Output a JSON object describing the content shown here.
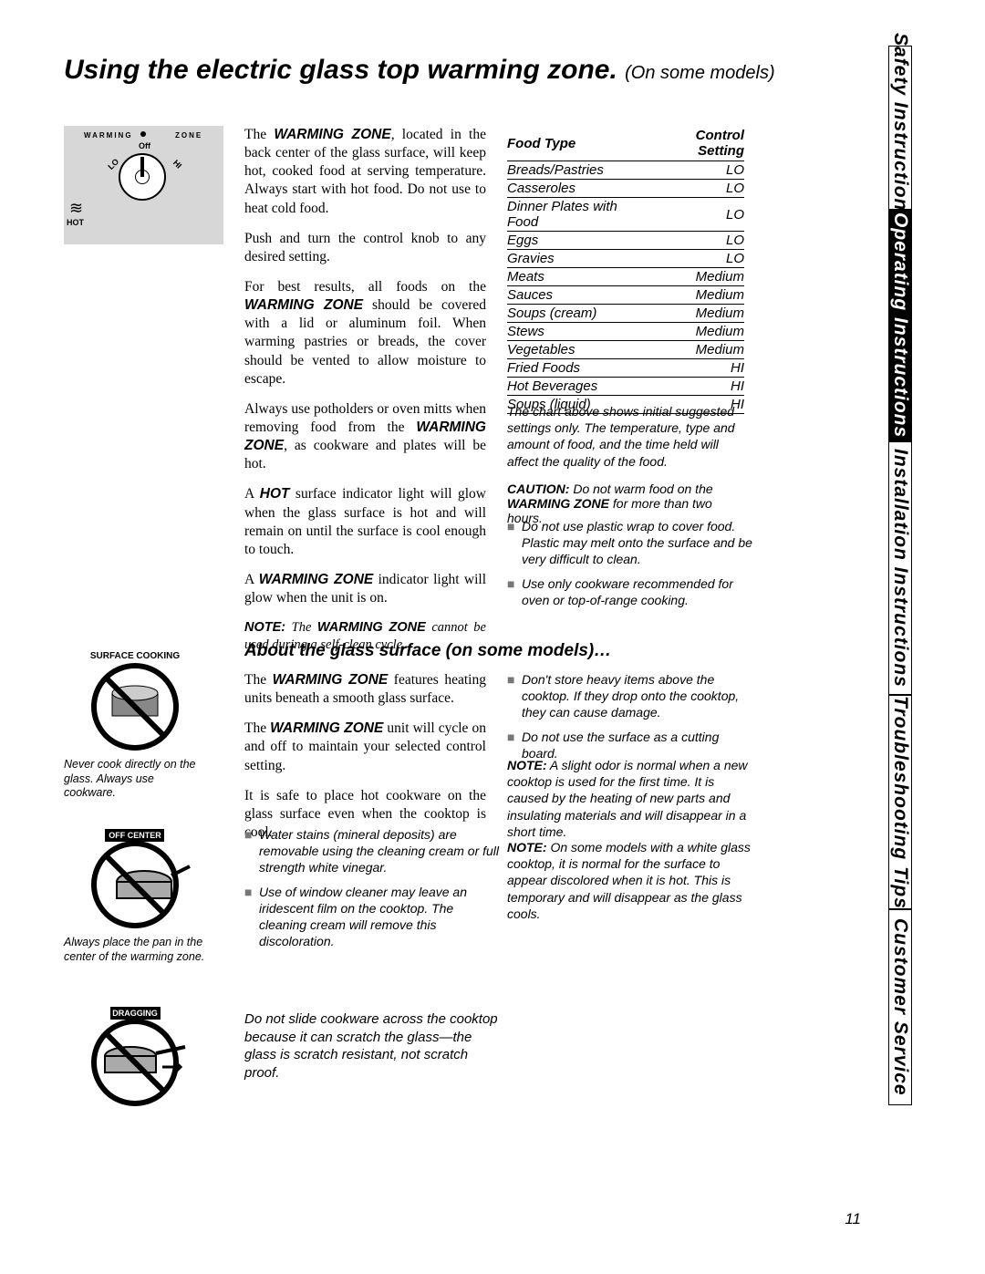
{
  "title": {
    "main": "Using the electric glass top warming zone.",
    "sub": "(On some models)"
  },
  "tabs": [
    {
      "label": "Safety Instructions",
      "active": false
    },
    {
      "label": "Operating Instructions",
      "active": true
    },
    {
      "label": "Installation Instructions",
      "active": false
    },
    {
      "label": "Troubleshooting Tips",
      "active": false
    },
    {
      "label": "Customer Service",
      "active": false
    }
  ],
  "knob": {
    "left_label": "WARMING",
    "right_label": "ZONE",
    "off": "Off",
    "lo": "LO",
    "hi": "HI",
    "hot": "HOT"
  },
  "paragraphs": {
    "p1_pre": "The ",
    "p1_bold": "WARMING ZONE",
    "p1_post": ", located in the back center of the glass surface, will keep hot, cooked food at serving temperature. Always start with hot food. Do not use to heat cold food.",
    "p2": "Push and turn the control knob to any desired setting.",
    "p3_pre": "For best results, all foods on the ",
    "p3_bold": "WARMING ZONE",
    "p3_post": " should be covered with a lid or aluminum foil. When warming pastries or breads, the cover should be vented to allow moisture to escape.",
    "p4_pre": "Always use potholders or oven mitts when removing food from the ",
    "p4_bold": "WARMING ZONE",
    "p4_post": ", as cookware and plates will be hot.",
    "p5_pre": "A ",
    "p5_bold": "HOT",
    "p5_post": " surface indicator light will glow when the glass surface is hot and will remain on until the surface is cool enough to touch.",
    "p6_pre": "A ",
    "p6_bold": "WARMING ZONE",
    "p6_post": " indicator light will glow when the unit is on.",
    "note1_pre": "NOTE:",
    "note1_mid": " The ",
    "note1_bold": "WARMING ZONE",
    "note1_post": " cannot be used during a self-clean cycle."
  },
  "food_table": {
    "header_food": "Food Type",
    "header_setting": "Control Setting",
    "rows": [
      {
        "food": "Breads/Pastries",
        "setting": "LO"
      },
      {
        "food": "Casseroles",
        "setting": "LO"
      },
      {
        "food": "Dinner Plates with Food",
        "setting": "LO"
      },
      {
        "food": "Eggs",
        "setting": "LO"
      },
      {
        "food": "Gravies",
        "setting": "LO"
      },
      {
        "food": "Meats",
        "setting": "Medium"
      },
      {
        "food": "Sauces",
        "setting": "Medium"
      },
      {
        "food": "Soups (cream)",
        "setting": "Medium"
      },
      {
        "food": "Stews",
        "setting": "Medium"
      },
      {
        "food": "Vegetables",
        "setting": "Medium"
      },
      {
        "food": "Fried Foods",
        "setting": "HI"
      },
      {
        "food": "Hot Beverages",
        "setting": "HI"
      },
      {
        "food": "Soups (liquid)",
        "setting": "HI"
      }
    ]
  },
  "table_note": "The chart above shows initial suggested settings only. The temperature, type and amount of food, and the time held will affect the quality of the food.",
  "caution": {
    "label": "CAUTION:",
    "pre": " Do not warm food on the ",
    "bold": "WARMING ZONE",
    "post": " for more than two hours."
  },
  "top_bullets": [
    "Do not use plastic wrap to cover food. Plastic may melt onto the surface and be very difficult to clean.",
    "Use only cookware recommended for oven or top-of-range cooking."
  ],
  "section2": {
    "heading": "About the glass surface (on some models)…",
    "p1_pre": "The ",
    "p1_bold": "WARMING ZONE",
    "p1_post": " features heating units beneath a smooth glass surface.",
    "p2_pre": "The ",
    "p2_bold": "WARMING ZONE",
    "p2_post": " unit will cycle on and off to maintain your selected control setting.",
    "p3": "It is safe to place hot cookware on the glass surface even when the cooktop is cool."
  },
  "mid_bullets": [
    "Water stains (mineral deposits) are removable using the cleaning cream or full strength white vinegar.",
    "Use of window cleaner may leave an iridescent film on the cooktop. The cleaning cream will remove this discoloration."
  ],
  "right_bullets": [
    "Don't store heavy items above the cooktop. If they drop onto the cooktop, they can cause damage.",
    "Do not use the surface as a cutting board."
  ],
  "right_notes": {
    "n1_label": "NOTE:",
    "n1_text": " A slight odor is normal when a new cooktop is used for the first time. It is caused by the heating of new parts and insulating materials and will disappear in a short time.",
    "n2_label": "NOTE:",
    "n2_text": " On some models with a white glass cooktop, it is normal for the surface to appear discolored when it is hot. This is temporary and will disappear as the glass cools."
  },
  "icons": {
    "surface_cooking": "SURFACE COOKING",
    "off_center": "OFF CENTER",
    "dragging": "DRAGGING",
    "caption1": "Never cook directly on the glass. Always use cookware.",
    "caption2": "Always place the pan in the center of the warming zone."
  },
  "slide_warning": "Do not slide cookware across the cooktop because it can scratch the glass—the glass is scratch resistant, not scratch proof.",
  "page_number": "11"
}
